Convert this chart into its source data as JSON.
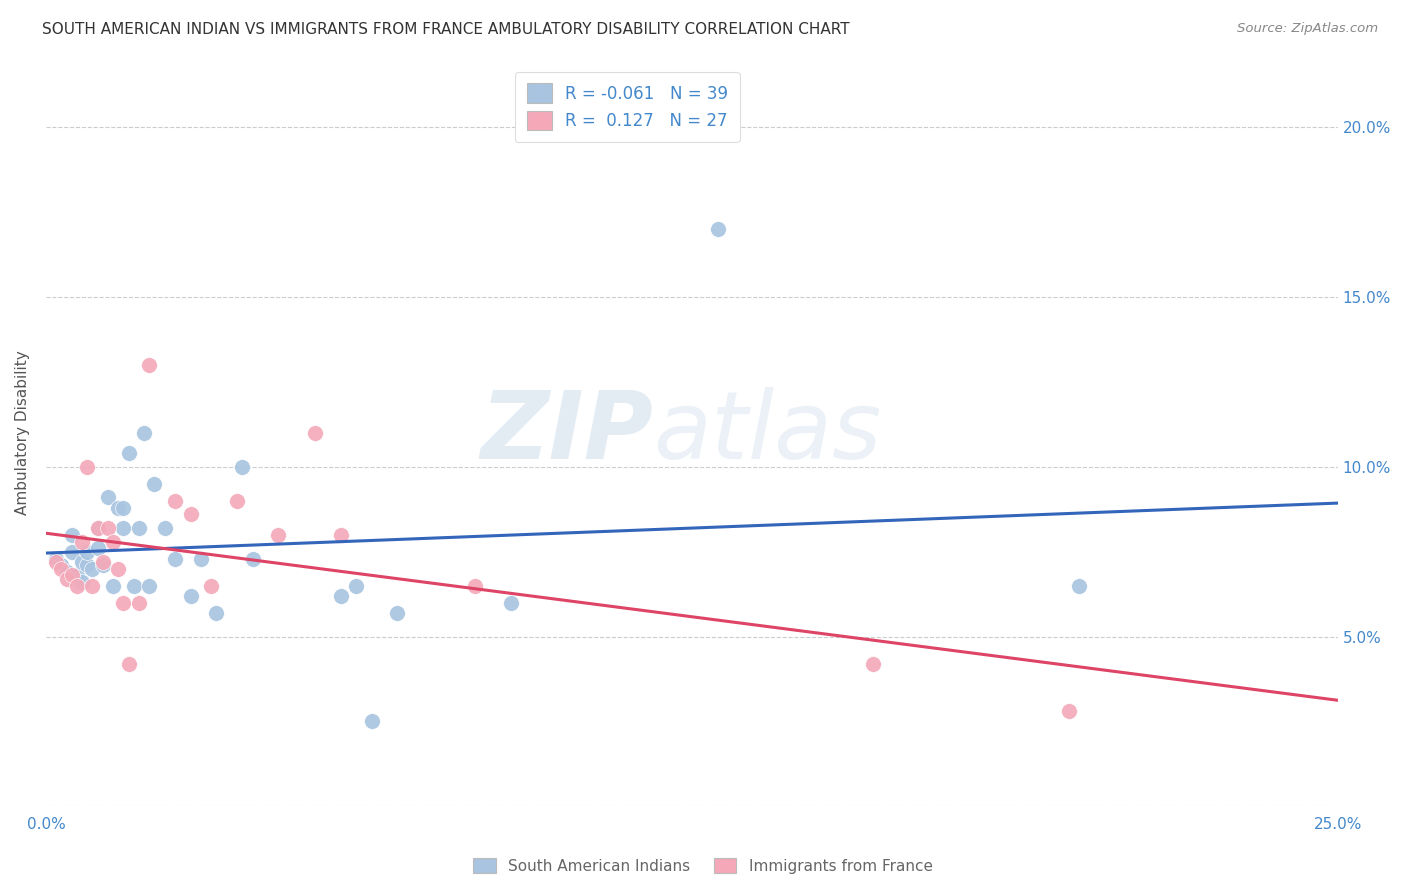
{
  "title": "SOUTH AMERICAN INDIAN VS IMMIGRANTS FROM FRANCE AMBULATORY DISABILITY CORRELATION CHART",
  "source": "Source: ZipAtlas.com",
  "ylabel": "Ambulatory Disability",
  "xlim": [
    0.0,
    0.25
  ],
  "ylim": [
    0.0,
    0.22
  ],
  "ytick_labels": [
    "",
    "5.0%",
    "10.0%",
    "15.0%",
    "20.0%"
  ],
  "ytick_values": [
    0.0,
    0.05,
    0.1,
    0.15,
    0.2
  ],
  "xtick_labels": [
    "0.0%",
    "",
    "",
    "",
    "",
    "25.0%"
  ],
  "xtick_values": [
    0.0,
    0.05,
    0.1,
    0.15,
    0.2,
    0.25
  ],
  "blue_R": -0.061,
  "blue_N": 39,
  "pink_R": 0.127,
  "pink_N": 27,
  "legend_label_blue": "South American Indians",
  "legend_label_pink": "Immigrants from France",
  "blue_color": "#a8c4e0",
  "pink_color": "#f4a8b8",
  "blue_line_color": "#3366bb",
  "pink_line_color": "#dd4466",
  "background_color": "#ffffff",
  "grid_color": "#cccccc",
  "title_color": "#333333",
  "axis_label_color": "#4488cc",
  "blue_scatter_x": [
    0.002,
    0.003,
    0.004,
    0.005,
    0.005,
    0.006,
    0.007,
    0.007,
    0.008,
    0.008,
    0.009,
    0.01,
    0.01,
    0.011,
    0.012,
    0.013,
    0.014,
    0.015,
    0.015,
    0.016,
    0.017,
    0.018,
    0.019,
    0.02,
    0.021,
    0.023,
    0.025,
    0.028,
    0.03,
    0.033,
    0.038,
    0.04,
    0.057,
    0.06,
    0.063,
    0.068,
    0.09,
    0.13,
    0.2
  ],
  "blue_scatter_y": [
    0.073,
    0.071,
    0.069,
    0.075,
    0.08,
    0.068,
    0.072,
    0.066,
    0.071,
    0.075,
    0.07,
    0.082,
    0.076,
    0.071,
    0.091,
    0.065,
    0.088,
    0.088,
    0.082,
    0.104,
    0.065,
    0.082,
    0.11,
    0.065,
    0.095,
    0.082,
    0.073,
    0.062,
    0.073,
    0.057,
    0.1,
    0.073,
    0.062,
    0.065,
    0.025,
    0.057,
    0.06,
    0.17,
    0.065
  ],
  "pink_scatter_x": [
    0.002,
    0.003,
    0.004,
    0.005,
    0.006,
    0.007,
    0.008,
    0.009,
    0.01,
    0.011,
    0.012,
    0.013,
    0.014,
    0.015,
    0.016,
    0.018,
    0.02,
    0.025,
    0.028,
    0.032,
    0.037,
    0.045,
    0.052,
    0.057,
    0.083,
    0.16,
    0.198
  ],
  "pink_scatter_y": [
    0.072,
    0.07,
    0.067,
    0.068,
    0.065,
    0.078,
    0.1,
    0.065,
    0.082,
    0.072,
    0.082,
    0.078,
    0.07,
    0.06,
    0.042,
    0.06,
    0.13,
    0.09,
    0.086,
    0.065,
    0.09,
    0.08,
    0.11,
    0.08,
    0.065,
    0.042,
    0.028
  ],
  "watermark_zip": "ZIP",
  "watermark_atlas": "atlas",
  "marker_size": 130
}
